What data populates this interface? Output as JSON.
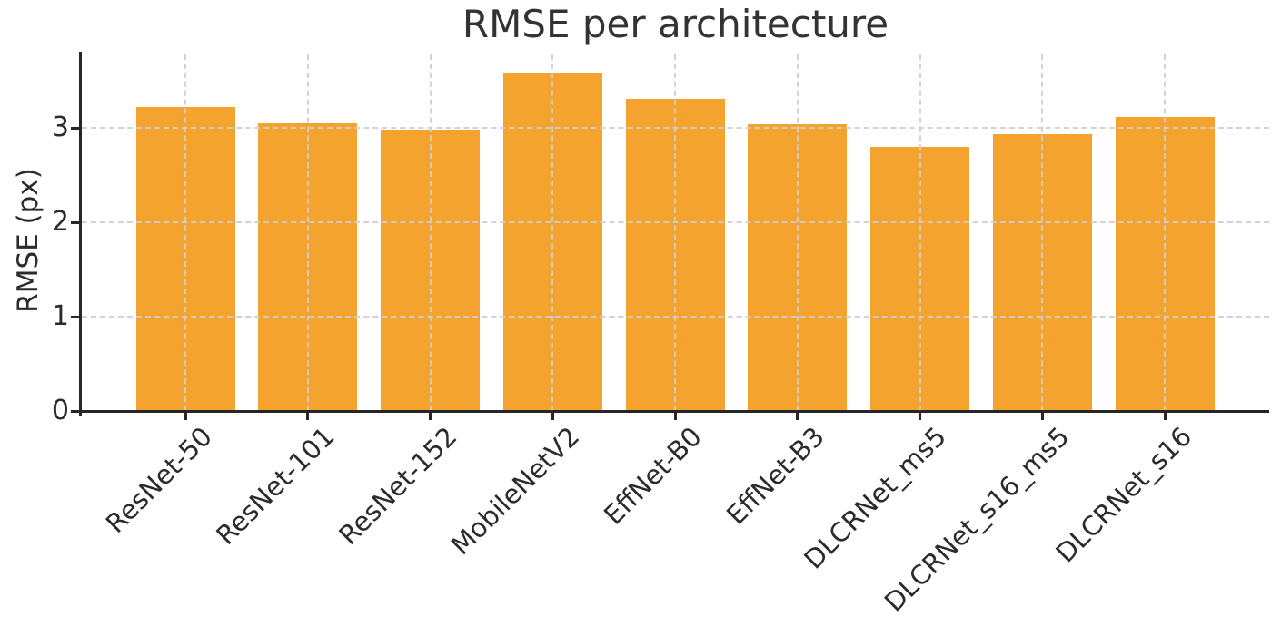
{
  "chart_data": {
    "type": "bar",
    "title": "RMSE per architecture",
    "xlabel": "",
    "ylabel": "RMSE (px)",
    "categories": [
      "ResNet-50",
      "ResNet-101",
      "ResNet-152",
      "MobileNetV2",
      "EffNet-B0",
      "EffNet-B3",
      "DLCRNet_ms5",
      "DLCRNet_s16_ms5",
      "DLCRNet_s16"
    ],
    "values": [
      3.22,
      3.05,
      2.98,
      3.59,
      3.31,
      3.04,
      2.8,
      2.93,
      3.12
    ],
    "yticks": [
      0,
      1,
      2,
      3
    ],
    "ylim": [
      0,
      3.78
    ],
    "grid": true,
    "grid_axes": "both",
    "grid_style": "dashed",
    "x_tick_rotation": 45,
    "legend": "none",
    "colors": {
      "bar": "#F4A32F",
      "grid": "#cfcfcf",
      "spine": "#262626",
      "text": "#2b2b2b",
      "background": "#ffffff"
    }
  }
}
